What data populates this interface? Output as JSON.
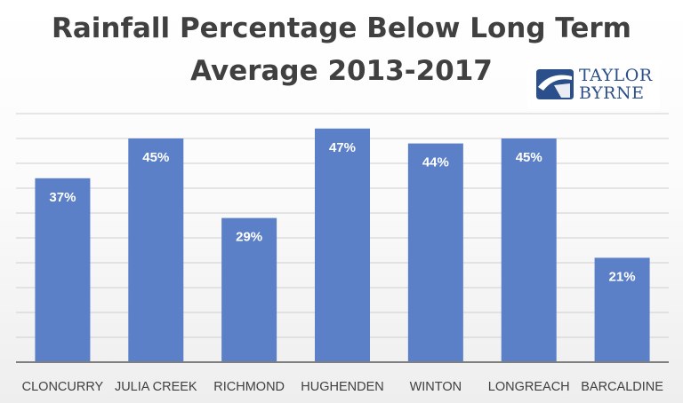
{
  "title_line1": "Rainfall Percentage Below Long Term",
  "title_line2": "Average 2013-2017",
  "logo": {
    "line1": "TAYLOR",
    "line2": "BYRNE",
    "color": "#2b4f8a"
  },
  "colors": {
    "bar": "#5b80c8",
    "grid": "#cfcfcf",
    "axis": "#7f7f7f",
    "label": "#ffffff",
    "tick": "#404040"
  },
  "chart_data": {
    "type": "bar",
    "title": "Rainfall Percentage Below Long Term Average 2013-2017",
    "categories": [
      "CLONCURRY",
      "JULIA CREEK",
      "RICHMOND",
      "HUGHENDEN",
      "WINTON",
      "LONGREACH",
      "BARCALDINE"
    ],
    "values": [
      37,
      45,
      29,
      47,
      44,
      45,
      21
    ],
    "data_labels": [
      "37%",
      "45%",
      "29%",
      "47%",
      "44%",
      "45%",
      "21%"
    ],
    "ylim": [
      0,
      50
    ],
    "grid": true,
    "legend": "none"
  }
}
